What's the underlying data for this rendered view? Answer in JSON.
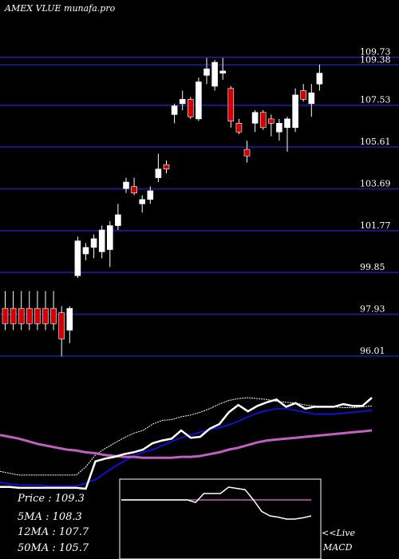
{
  "header": {
    "title": "AMEX VLUE munafa.pro"
  },
  "colors": {
    "background": "#000000",
    "gridline": "#1a1a80",
    "bull_candle": "#ffffff",
    "bear_candle": "#d00000",
    "wick": "#ffffff",
    "ma_fast": "#ffffff",
    "ma_mid": "#1010d0",
    "ma_slow": "#c060c0",
    "macd_box_border": "#ffffff",
    "macd_line": "#ffffff",
    "macd_signal": "#c060c0"
  },
  "stats": {
    "price": "Price  : 109.3",
    "ma5": "5MA : 108.3",
    "ma12": "12MA : 107.7",
    "ma50": "50MA : 105.7"
  },
  "macd": {
    "label_live": "<<Live",
    "label_macd": "MACD"
  },
  "chart_data": {
    "type": "candlestick",
    "title": "AMEX VLUE munafa.pro",
    "ylim": [
      95.2,
      110.6
    ],
    "price_levels": [
      {
        "value": 109.73,
        "label": "109.73"
      },
      {
        "value": 109.38,
        "label": "109.38"
      },
      {
        "value": 107.53,
        "label": "107.53"
      },
      {
        "value": 105.61,
        "label": "105.61"
      },
      {
        "value": 103.69,
        "label": "103.69"
      },
      {
        "value": 101.77,
        "label": "101.77"
      },
      {
        "value": 99.85,
        "label": "99.85"
      },
      {
        "value": 97.93,
        "label": "97.93"
      },
      {
        "value": 96.01,
        "label": "96.01"
      }
    ],
    "candles": [
      {
        "o": 98.2,
        "h": 99.0,
        "l": 97.2,
        "c": 97.5
      },
      {
        "o": 98.2,
        "h": 99.0,
        "l": 97.2,
        "c": 97.5
      },
      {
        "o": 98.2,
        "h": 99.0,
        "l": 97.2,
        "c": 97.5
      },
      {
        "o": 98.2,
        "h": 99.0,
        "l": 97.2,
        "c": 97.5
      },
      {
        "o": 98.2,
        "h": 99.0,
        "l": 97.2,
        "c": 97.5
      },
      {
        "o": 98.2,
        "h": 99.0,
        "l": 97.2,
        "c": 97.5
      },
      {
        "o": 98.2,
        "h": 99.0,
        "l": 97.2,
        "c": 97.5
      },
      {
        "o": 98.0,
        "h": 98.3,
        "l": 96.0,
        "c": 96.8
      },
      {
        "o": 97.2,
        "h": 98.3,
        "l": 96.6,
        "c": 98.2
      },
      {
        "o": 99.7,
        "h": 101.5,
        "l": 99.6,
        "c": 101.3
      },
      {
        "o": 100.7,
        "h": 101.2,
        "l": 100.4,
        "c": 101.0
      },
      {
        "o": 101.0,
        "h": 101.6,
        "l": 100.5,
        "c": 101.4
      },
      {
        "o": 100.8,
        "h": 102.0,
        "l": 100.5,
        "c": 101.8
      },
      {
        "o": 100.9,
        "h": 102.2,
        "l": 100.1,
        "c": 102.0
      },
      {
        "o": 102.0,
        "h": 103.0,
        "l": 101.8,
        "c": 102.5
      },
      {
        "o": 103.7,
        "h": 104.2,
        "l": 103.5,
        "c": 104.0
      },
      {
        "o": 103.8,
        "h": 104.2,
        "l": 103.4,
        "c": 103.5
      },
      {
        "o": 103.0,
        "h": 103.4,
        "l": 102.6,
        "c": 103.2
      },
      {
        "o": 103.2,
        "h": 103.8,
        "l": 103.0,
        "c": 103.6
      },
      {
        "o": 104.2,
        "h": 105.3,
        "l": 104.0,
        "c": 104.6
      },
      {
        "o": 104.8,
        "h": 105.0,
        "l": 104.4,
        "c": 104.6
      },
      {
        "o": 107.1,
        "h": 107.6,
        "l": 106.7,
        "c": 107.5
      },
      {
        "o": 107.6,
        "h": 108.2,
        "l": 107.3,
        "c": 107.8
      },
      {
        "o": 107.8,
        "h": 107.9,
        "l": 106.9,
        "c": 107.0
      },
      {
        "o": 106.9,
        "h": 108.8,
        "l": 106.8,
        "c": 108.6
      },
      {
        "o": 108.9,
        "h": 109.7,
        "l": 108.5,
        "c": 109.2
      },
      {
        "o": 108.4,
        "h": 109.6,
        "l": 108.2,
        "c": 109.5
      },
      {
        "o": 109.0,
        "h": 109.7,
        "l": 108.7,
        "c": 109.1
      },
      {
        "o": 108.3,
        "h": 108.4,
        "l": 106.5,
        "c": 106.8
      },
      {
        "o": 106.7,
        "h": 106.9,
        "l": 106.2,
        "c": 106.3
      },
      {
        "o": 105.5,
        "h": 105.9,
        "l": 104.9,
        "c": 105.2
      },
      {
        "o": 106.7,
        "h": 107.3,
        "l": 106.3,
        "c": 107.2
      },
      {
        "o": 107.2,
        "h": 107.3,
        "l": 106.4,
        "c": 106.5
      },
      {
        "o": 106.9,
        "h": 107.1,
        "l": 106.1,
        "c": 106.7
      },
      {
        "o": 106.3,
        "h": 106.9,
        "l": 105.9,
        "c": 106.7
      },
      {
        "o": 106.5,
        "h": 107.0,
        "l": 105.4,
        "c": 106.9
      },
      {
        "o": 106.5,
        "h": 108.3,
        "l": 106.3,
        "c": 108.0
      },
      {
        "o": 108.2,
        "h": 108.5,
        "l": 107.7,
        "c": 107.8
      },
      {
        "o": 107.6,
        "h": 108.5,
        "l": 107.0,
        "c": 108.1
      },
      {
        "o": 108.5,
        "h": 109.4,
        "l": 108.2,
        "c": 109.0
      }
    ],
    "ma_lines": [
      {
        "name": "5MA",
        "values": [
          0.19,
          0.17,
          0.15,
          0.15,
          0.15,
          0.15,
          0.15,
          0.15,
          0.15,
          0.24,
          0.37,
          0.44,
          0.5,
          0.56,
          0.61,
          0.64,
          0.71,
          0.75,
          0.76,
          0.79,
          0.81,
          0.84,
          0.88,
          0.93,
          0.97,
          0.99,
          1.0,
          0.99,
          0.98,
          0.96,
          0.95,
          0.94,
          0.92,
          0.91,
          0.9,
          0.9,
          0.89,
          0.89,
          0.9,
          0.91
        ]
      },
      {
        "name": "12MA",
        "values": [
          0.07,
          0.05,
          0.04,
          0.04,
          0.04,
          0.03,
          0.03,
          0.03,
          0.03,
          0.06,
          0.1,
          0.17,
          0.24,
          0.3,
          0.36,
          0.4,
          0.43,
          0.47,
          0.52,
          0.56,
          0.59,
          0.62,
          0.65,
          0.67,
          0.7,
          0.74,
          0.79,
          0.83,
          0.86,
          0.88,
          0.88,
          0.86,
          0.84,
          0.82,
          0.82,
          0.82,
          0.83,
          0.84,
          0.85,
          0.86
        ]
      },
      {
        "name": "50MA",
        "values": [
          0.59,
          0.57,
          0.55,
          0.52,
          0.49,
          0.47,
          0.45,
          0.43,
          0.42,
          0.4,
          0.39,
          0.37,
          0.36,
          0.35,
          0.35,
          0.34,
          0.34,
          0.34,
          0.34,
          0.35,
          0.35,
          0.36,
          0.38,
          0.4,
          0.43,
          0.45,
          0.48,
          0.51,
          0.53,
          0.54,
          0.55,
          0.56,
          0.57,
          0.58,
          0.59,
          0.6,
          0.61,
          0.62,
          0.63,
          0.64
        ]
      },
      {
        "name": "Price",
        "values": [
          0.02,
          0.02,
          0.01,
          0.01,
          0.01,
          0.01,
          0.01,
          0.01,
          0.01,
          0.0,
          0.3,
          0.33,
          0.35,
          0.38,
          0.4,
          0.43,
          0.5,
          0.53,
          0.55,
          0.64,
          0.56,
          0.57,
          0.66,
          0.71,
          0.84,
          0.92,
          0.85,
          0.91,
          0.95,
          0.98,
          0.9,
          0.94,
          0.88,
          0.9,
          0.9,
          0.9,
          0.93,
          0.91,
          0.91,
          1.0
        ]
      }
    ],
    "ma_range": [
      0,
      1
    ],
    "macd": {
      "macd_values": [
        0.8,
        0.8,
        0.8,
        0.8,
        0.8,
        0.8,
        0.8,
        0.8,
        0.8,
        0.76,
        0.9,
        0.9,
        0.9,
        1.0,
        0.98,
        0.96,
        0.8,
        0.62,
        0.55,
        0.53,
        0.5,
        0.5,
        0.52,
        0.55
      ],
      "signal_values": [
        0.8,
        0.8,
        0.8,
        0.8,
        0.8,
        0.8,
        0.8,
        0.8,
        0.8,
        0.8,
        0.8,
        0.8,
        0.8,
        0.8,
        0.8,
        0.8,
        0.8,
        0.8,
        0.8,
        0.8,
        0.8,
        0.8,
        0.8,
        0.8
      ]
    }
  }
}
